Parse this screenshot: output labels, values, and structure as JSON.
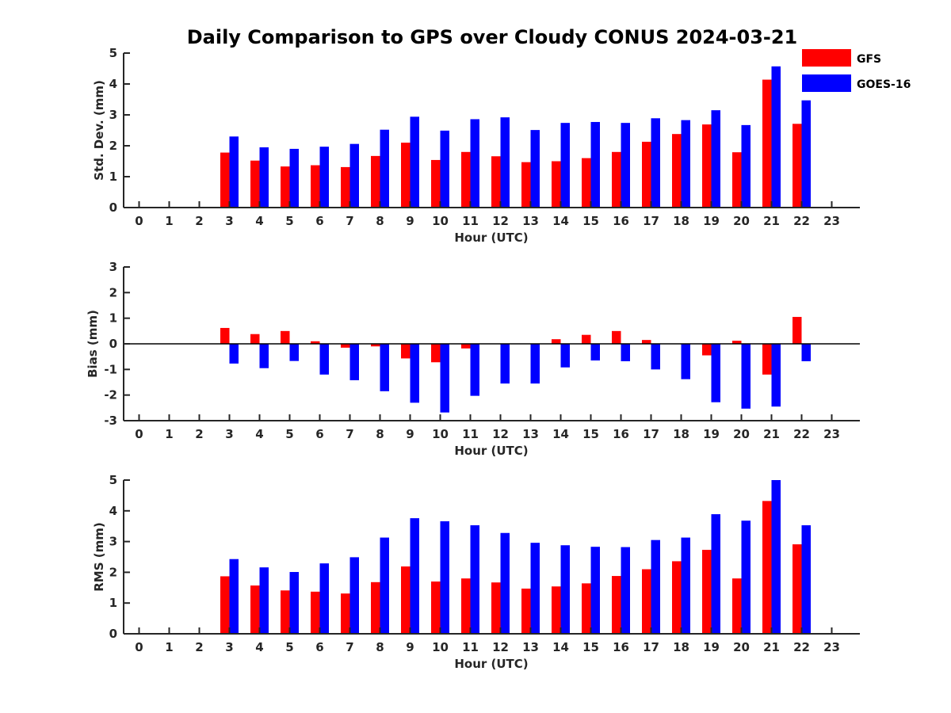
{
  "title": "Daily Comparison to GPS over Cloudy CONUS 2024-03-21",
  "colors": {
    "GFS": "#ff0000",
    "GOES-16": "#0000ff"
  },
  "legend": {
    "placement": "top-right",
    "entries": [
      "GFS",
      "GOES-16"
    ]
  },
  "chart_data": [
    {
      "type": "bar",
      "title": "Daily Comparison to GPS over Cloudy CONUS 2024-03-21",
      "xlabel": "Hour (UTC)",
      "ylabel": "Std. Dev. (mm)",
      "categories": [
        "0",
        "1",
        "2",
        "3",
        "4",
        "5",
        "6",
        "7",
        "8",
        "9",
        "10",
        "11",
        "12",
        "13",
        "14",
        "15",
        "16",
        "17",
        "18",
        "19",
        "20",
        "21",
        "22",
        "23"
      ],
      "ylim": [
        0,
        5
      ],
      "yticks": [
        "0",
        "1",
        "2",
        "3",
        "4",
        "5"
      ],
      "grid": false,
      "series": [
        {
          "name": "GFS",
          "values": [
            null,
            null,
            null,
            1.78,
            1.52,
            1.33,
            1.37,
            1.31,
            1.67,
            2.1,
            1.54,
            1.8,
            1.66,
            1.47,
            1.5,
            1.6,
            1.8,
            2.13,
            2.38,
            2.69,
            1.79,
            4.14,
            2.71,
            null
          ]
        },
        {
          "name": "GOES-16",
          "values": [
            null,
            null,
            null,
            2.3,
            1.95,
            1.9,
            1.97,
            2.06,
            2.52,
            2.94,
            2.49,
            2.86,
            2.92,
            2.51,
            2.74,
            2.77,
            2.74,
            2.89,
            2.83,
            3.15,
            2.67,
            4.57,
            3.47,
            null
          ]
        }
      ]
    },
    {
      "type": "bar",
      "xlabel": "Hour (UTC)",
      "ylabel": "Bias (mm)",
      "categories": [
        "0",
        "1",
        "2",
        "3",
        "4",
        "5",
        "6",
        "7",
        "8",
        "9",
        "10",
        "11",
        "12",
        "13",
        "14",
        "15",
        "16",
        "17",
        "18",
        "19",
        "20",
        "21",
        "22",
        "23"
      ],
      "ylim": [
        -3,
        3
      ],
      "yticks": [
        "-3",
        "-2",
        "-1",
        "0",
        "1",
        "2",
        "3"
      ],
      "grid": false,
      "series": [
        {
          "name": "GFS",
          "values": [
            null,
            null,
            null,
            0.62,
            0.38,
            0.5,
            0.1,
            -0.15,
            -0.1,
            -0.57,
            -0.72,
            -0.18,
            0.0,
            0.0,
            0.18,
            0.35,
            0.5,
            0.15,
            0.0,
            -0.45,
            0.12,
            -1.2,
            1.05,
            null
          ]
        },
        {
          "name": "GOES-16",
          "values": [
            null,
            null,
            null,
            -0.77,
            -0.95,
            -0.67,
            -1.2,
            -1.42,
            -1.85,
            -2.3,
            -2.68,
            -2.03,
            -1.55,
            -1.55,
            -0.92,
            -0.65,
            -0.68,
            -1.0,
            -1.38,
            -2.28,
            -2.53,
            -2.45,
            -0.68,
            null
          ]
        }
      ]
    },
    {
      "type": "bar",
      "xlabel": "Hour (UTC)",
      "ylabel": "RMS (mm)",
      "categories": [
        "0",
        "1",
        "2",
        "3",
        "4",
        "5",
        "6",
        "7",
        "8",
        "9",
        "10",
        "11",
        "12",
        "13",
        "14",
        "15",
        "16",
        "17",
        "18",
        "19",
        "20",
        "21",
        "22",
        "23"
      ],
      "ylim": [
        0,
        5
      ],
      "yticks": [
        "0",
        "1",
        "2",
        "3",
        "4",
        "5"
      ],
      "grid": false,
      "series": [
        {
          "name": "GFS",
          "values": [
            null,
            null,
            null,
            1.87,
            1.57,
            1.41,
            1.37,
            1.31,
            1.68,
            2.19,
            1.7,
            1.8,
            1.67,
            1.47,
            1.54,
            1.64,
            1.88,
            2.1,
            2.36,
            2.73,
            1.8,
            4.32,
            2.91,
            null
          ]
        },
        {
          "name": "GOES-16",
          "values": [
            null,
            null,
            null,
            2.43,
            2.16,
            2.01,
            2.29,
            2.49,
            3.13,
            3.76,
            3.66,
            3.53,
            3.28,
            2.96,
            2.88,
            2.83,
            2.82,
            3.05,
            3.13,
            3.89,
            3.68,
            5.0,
            3.53,
            null
          ]
        }
      ]
    }
  ]
}
